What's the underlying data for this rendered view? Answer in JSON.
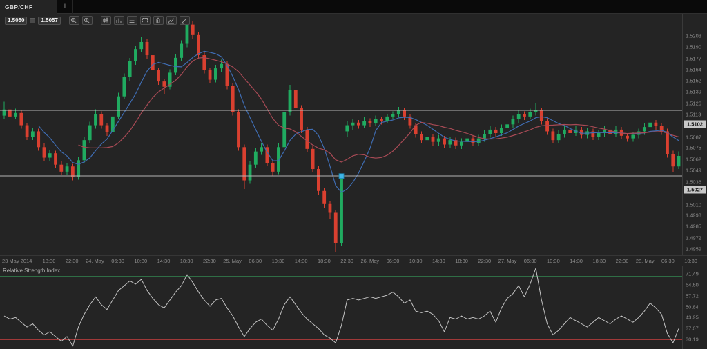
{
  "tab_bar": {
    "active_tab": "GBP/CHF",
    "new_tab_button": "+"
  },
  "toolbar": {
    "bid": "1.5050",
    "ask": "1.5057",
    "buttons": [
      {
        "name": "zoom-out",
        "tooltip": "Zoom out"
      },
      {
        "name": "zoom-in",
        "tooltip": "Zoom in"
      },
      {
        "name": "chart-type",
        "tooltip": "Chart type"
      },
      {
        "name": "periods",
        "tooltip": "Periods"
      },
      {
        "name": "view-mode",
        "tooltip": "View mode"
      },
      {
        "name": "snapshot",
        "tooltip": "Chart snapshot"
      },
      {
        "name": "link",
        "tooltip": "Link charts"
      },
      {
        "name": "indicators",
        "tooltip": "Indicators"
      },
      {
        "name": "draw",
        "tooltip": "Drawing tools"
      }
    ]
  },
  "colors": {
    "background": "#242424",
    "bull": "#20ab60",
    "bear": "#da4030",
    "ma_fast": "#3f6db3",
    "ma_slow": "#a84a55",
    "rsi_line": "#c4c4c4",
    "rsi_upper_level": "#2f6e45",
    "rsi_lower_level": "#a03939",
    "hline": "#b5b5b5",
    "handle": "#3fb6e8",
    "badge_bg": "#c8c8c8"
  },
  "price_axis": {
    "ticks": [
      1.5203,
      1.519,
      1.5177,
      1.5164,
      1.5152,
      1.5139,
      1.5126,
      1.5113,
      1.5087,
      1.5075,
      1.5062,
      1.5049,
      1.5036,
      1.501,
      1.4998,
      1.4985,
      1.4972,
      1.4959,
      1.4946
    ],
    "badges": [
      {
        "label": "1.5102",
        "price": 1.5102,
        "selected": false
      },
      {
        "label": "1.5027",
        "price": 1.5027,
        "selected": true
      }
    ]
  },
  "rsi_panel": {
    "title": "Relative Strength Index",
    "close_button": "×",
    "ticks": [
      "71.49",
      "64.60",
      "57.72",
      "50.84",
      "43.95",
      "37.07",
      "30.19"
    ]
  },
  "chart_data": [
    {
      "type": "candlestick",
      "title": "GBP/CHF",
      "timeframe_hint": "hourly candles, 23-28 May 2014",
      "x_labels": [
        "23 May 2014",
        "18:30",
        "22:30",
        "24. May",
        "06:30",
        "10:30",
        "14:30",
        "18:30",
        "22:30",
        "25. May",
        "06:30",
        "10:30",
        "14:30",
        "18:30",
        "22:30",
        "26. May",
        "06:30",
        "10:30",
        "14:30",
        "18:30",
        "22:30",
        "27. May",
        "06:30",
        "10:30",
        "14:30",
        "18:30",
        "22:30",
        "28. May",
        "06:30",
        "10:30"
      ],
      "y_ticks": [
        1.5203,
        1.519,
        1.5177,
        1.5164,
        1.5152,
        1.5139,
        1.5126,
        1.5113,
        1.5087,
        1.5075,
        1.5062,
        1.5049,
        1.5036,
        1.501,
        1.4998,
        1.4985,
        1.4972,
        1.4959,
        1.4946
      ],
      "horizontal_lines": [
        1.5102,
        1.5027
      ],
      "selected_line": 1.5027,
      "overlays": [
        {
          "name": "SMA fast",
          "period": 7,
          "color": "#3f6db3"
        },
        {
          "name": "SMA slow",
          "period": 14,
          "color": "#a84a55"
        }
      ],
      "ohlc": [
        [
          1.5096,
          1.5112,
          1.5092,
          1.5103
        ],
        [
          1.5103,
          1.5107,
          1.5091,
          1.5095
        ],
        [
          1.5095,
          1.5104,
          1.5092,
          1.5099
        ],
        [
          1.5099,
          1.5102,
          1.5081,
          1.5085
        ],
        [
          1.5085,
          1.5088,
          1.5068,
          1.5072
        ],
        [
          1.5072,
          1.5082,
          1.5068,
          1.5078
        ],
        [
          1.5078,
          1.5081,
          1.5056,
          1.506
        ],
        [
          1.506,
          1.5064,
          1.5044,
          1.5048
        ],
        [
          1.5048,
          1.5057,
          1.5044,
          1.5053
        ],
        [
          1.5053,
          1.5056,
          1.5036,
          1.504
        ],
        [
          1.504,
          1.5044,
          1.5028,
          1.5032
        ],
        [
          1.5032,
          1.5042,
          1.5028,
          1.5038
        ],
        [
          1.5038,
          1.5041,
          1.5022,
          1.5026
        ],
        [
          1.5026,
          1.5049,
          1.5023,
          1.5045
        ],
        [
          1.5045,
          1.5072,
          1.5042,
          1.5068
        ],
        [
          1.5068,
          1.5089,
          1.5064,
          1.5085
        ],
        [
          1.5085,
          1.5103,
          1.5081,
          1.5098
        ],
        [
          1.5098,
          1.5101,
          1.5081,
          1.5085
        ],
        [
          1.5085,
          1.5088,
          1.5073,
          1.5077
        ],
        [
          1.5077,
          1.5099,
          1.5074,
          1.5095
        ],
        [
          1.5095,
          1.5122,
          1.5092,
          1.5118
        ],
        [
          1.5118,
          1.5144,
          1.5115,
          1.514
        ],
        [
          1.514,
          1.5162,
          1.5136,
          1.5158
        ],
        [
          1.5158,
          1.5176,
          1.5154,
          1.5172
        ],
        [
          1.5172,
          1.5186,
          1.5168,
          1.518
        ],
        [
          1.518,
          1.5183,
          1.5161,
          1.5165
        ],
        [
          1.5165,
          1.5168,
          1.5144,
          1.5148
        ],
        [
          1.5148,
          1.5151,
          1.5131,
          1.5135
        ],
        [
          1.5135,
          1.5138,
          1.512,
          1.5129
        ],
        [
          1.5129,
          1.5149,
          1.5126,
          1.5145
        ],
        [
          1.5145,
          1.5166,
          1.5142,
          1.5162
        ],
        [
          1.5162,
          1.5182,
          1.5158,
          1.5178
        ],
        [
          1.5178,
          1.5206,
          1.5174,
          1.52
        ],
        [
          1.52,
          1.5204,
          1.5184,
          1.5188
        ],
        [
          1.5188,
          1.5191,
          1.5161,
          1.5165
        ],
        [
          1.5165,
          1.5168,
          1.5144,
          1.5148
        ],
        [
          1.5148,
          1.5151,
          1.5133,
          1.5137
        ],
        [
          1.5137,
          1.5154,
          1.5134,
          1.515
        ],
        [
          1.515,
          1.516,
          1.5146,
          1.5155
        ],
        [
          1.5155,
          1.5158,
          1.5126,
          1.513
        ],
        [
          1.513,
          1.5133,
          1.5096,
          1.51
        ],
        [
          1.51,
          1.5103,
          1.5056,
          1.506
        ],
        [
          1.506,
          1.5063,
          1.5012,
          1.5022
        ],
        [
          1.5022,
          1.5044,
          1.5018,
          1.504
        ],
        [
          1.504,
          1.5059,
          1.5036,
          1.5055
        ],
        [
          1.5055,
          1.5064,
          1.5051,
          1.506
        ],
        [
          1.506,
          1.5063,
          1.5038,
          1.5042
        ],
        [
          1.5042,
          1.5045,
          1.5027,
          1.5032
        ],
        [
          1.5032,
          1.5064,
          1.5029,
          1.506
        ],
        [
          1.506,
          1.5104,
          1.5057,
          1.51
        ],
        [
          1.51,
          1.5131,
          1.5096,
          1.5125
        ],
        [
          1.5125,
          1.5128,
          1.5101,
          1.5105
        ],
        [
          1.5105,
          1.5108,
          1.5076,
          1.508
        ],
        [
          1.508,
          1.5083,
          1.5054,
          1.5058
        ],
        [
          1.5058,
          1.5061,
          1.5031,
          1.5035
        ],
        [
          1.5035,
          1.5038,
          1.5006,
          1.501
        ],
        [
          1.501,
          1.5013,
          1.4991,
          1.4995
        ],
        [
          1.4995,
          1.4998,
          1.4978,
          1.4985
        ],
        [
          1.4985,
          1.4988,
          1.494,
          1.495
        ],
        [
          1.495,
          1.503,
          1.4947,
          1.5025
        ],
        [
          1.5078,
          1.509,
          1.5072,
          1.5085
        ],
        [
          1.5085,
          1.5092,
          1.508,
          1.5088
        ],
        [
          1.5088,
          1.5091,
          1.5081,
          1.5085
        ],
        [
          1.5085,
          1.5094,
          1.5082,
          1.509
        ],
        [
          1.509,
          1.5093,
          1.5083,
          1.5087
        ],
        [
          1.5087,
          1.5096,
          1.5084,
          1.5092
        ],
        [
          1.5092,
          1.5095,
          1.5086,
          1.509
        ],
        [
          1.509,
          1.5098,
          1.5087,
          1.5095
        ],
        [
          1.5095,
          1.5101,
          1.5092,
          1.5098
        ],
        [
          1.5098,
          1.5106,
          1.5095,
          1.5102
        ],
        [
          1.5102,
          1.5105,
          1.5091,
          1.5095
        ],
        [
          1.5095,
          1.5098,
          1.5081,
          1.5085
        ],
        [
          1.5085,
          1.5088,
          1.5071,
          1.5075
        ],
        [
          1.5075,
          1.5078,
          1.5064,
          1.5068
        ],
        [
          1.5068,
          1.5076,
          1.5064,
          1.5072
        ],
        [
          1.5072,
          1.5075,
          1.5062,
          1.5066
        ],
        [
          1.5066,
          1.5074,
          1.5062,
          1.507
        ],
        [
          1.507,
          1.5073,
          1.5059,
          1.5063
        ],
        [
          1.5063,
          1.5072,
          1.5059,
          1.5068
        ],
        [
          1.5068,
          1.5071,
          1.5058,
          1.5062
        ],
        [
          1.5062,
          1.507,
          1.5058,
          1.5066
        ],
        [
          1.5066,
          1.5074,
          1.5062,
          1.507
        ],
        [
          1.507,
          1.5073,
          1.5061,
          1.5065
        ],
        [
          1.5065,
          1.5074,
          1.5061,
          1.507
        ],
        [
          1.507,
          1.5079,
          1.5066,
          1.5075
        ],
        [
          1.5075,
          1.5084,
          1.5071,
          1.508
        ],
        [
          1.508,
          1.5083,
          1.5072,
          1.5076
        ],
        [
          1.5076,
          1.5086,
          1.5073,
          1.5082
        ],
        [
          1.5082,
          1.509,
          1.5078,
          1.5086
        ],
        [
          1.5086,
          1.5096,
          1.5082,
          1.5092
        ],
        [
          1.5092,
          1.5102,
          1.5088,
          1.5098
        ],
        [
          1.5098,
          1.5101,
          1.5091,
          1.5095
        ],
        [
          1.5095,
          1.5104,
          1.5092,
          1.51
        ],
        [
          1.51,
          1.511,
          1.5096,
          1.5102
        ],
        [
          1.5102,
          1.5105,
          1.5086,
          1.509
        ],
        [
          1.509,
          1.5093,
          1.5074,
          1.5078
        ],
        [
          1.5078,
          1.5081,
          1.5064,
          1.5068
        ],
        [
          1.5068,
          1.5079,
          1.5065,
          1.5075
        ],
        [
          1.5075,
          1.5084,
          1.5071,
          1.508
        ],
        [
          1.508,
          1.5083,
          1.5072,
          1.5076
        ],
        [
          1.5076,
          1.5084,
          1.5073,
          1.508
        ],
        [
          1.508,
          1.5083,
          1.507,
          1.5074
        ],
        [
          1.5074,
          1.5082,
          1.507,
          1.5078
        ],
        [
          1.5078,
          1.5081,
          1.5068,
          1.5072
        ],
        [
          1.5072,
          1.508,
          1.5068,
          1.5076
        ],
        [
          1.5076,
          1.5084,
          1.5072,
          1.508
        ],
        [
          1.508,
          1.5083,
          1.5071,
          1.5075
        ],
        [
          1.5075,
          1.5084,
          1.5072,
          1.508
        ],
        [
          1.508,
          1.5083,
          1.5069,
          1.5073
        ],
        [
          1.5073,
          1.5076,
          1.5066,
          1.507
        ],
        [
          1.507,
          1.5077,
          1.5066,
          1.5074
        ],
        [
          1.5074,
          1.5081,
          1.507,
          1.5078
        ],
        [
          1.5078,
          1.5087,
          1.5074,
          1.5083
        ],
        [
          1.5083,
          1.5092,
          1.5079,
          1.5088
        ],
        [
          1.5088,
          1.5091,
          1.508,
          1.5084
        ],
        [
          1.5084,
          1.5087,
          1.5074,
          1.5078
        ],
        [
          1.5078,
          1.5081,
          1.5048,
          1.5052
        ],
        [
          1.5052,
          1.5056,
          1.5032,
          1.5038
        ],
        [
          1.5038,
          1.5055,
          1.5035,
          1.505
        ]
      ]
    },
    {
      "type": "line",
      "title": "Relative Strength Index",
      "y_ticks": [
        71.49,
        64.6,
        57.72,
        50.84,
        43.95,
        37.07,
        30.19
      ],
      "levels": [
        70,
        30
      ],
      "values": [
        45,
        43,
        44,
        41,
        38,
        40,
        36,
        33,
        35,
        32,
        29,
        32,
        26,
        38,
        46,
        52,
        57,
        52,
        49,
        55,
        61,
        64,
        67,
        65,
        68,
        61,
        56,
        52,
        50,
        55,
        60,
        64,
        71,
        66,
        60,
        55,
        51,
        55,
        56,
        50,
        45,
        38,
        32,
        37,
        41,
        43,
        39,
        36,
        43,
        52,
        57,
        52,
        47,
        43,
        40,
        37,
        33,
        31,
        28,
        39,
        55,
        56,
        55,
        56,
        57,
        56,
        57,
        58,
        60,
        57,
        53,
        55,
        48,
        47,
        48,
        46,
        42,
        35,
        44,
        43,
        45,
        43,
        44,
        43,
        45,
        48,
        41,
        50,
        56,
        59,
        64,
        57,
        65,
        75,
        55,
        40,
        33,
        36,
        40,
        44,
        42,
        40,
        38,
        41,
        44,
        42,
        40,
        43,
        45,
        43,
        41,
        44,
        48,
        53,
        50,
        46,
        34,
        28,
        37
      ]
    }
  ]
}
